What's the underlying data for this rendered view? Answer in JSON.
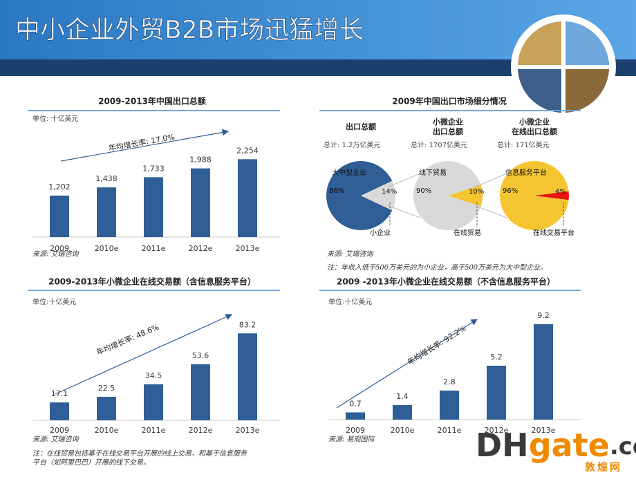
{
  "slide_title": "中小企业外贸B2B市场迅猛增长",
  "logo": {
    "dh": "DH",
    "gate": "gate",
    "com": ".com",
    "cn": "敦煌网"
  },
  "chart_data": [
    {
      "type": "bar",
      "title": "2009-2013年中国出口总额",
      "unit": "单位: 十亿美元",
      "categories": [
        "2009",
        "2010e",
        "2011e",
        "2012e",
        "2013e"
      ],
      "values": [
        1202,
        1438,
        1733,
        1988,
        2254
      ],
      "value_labels": [
        "1,202",
        "1,438",
        "1,733",
        "1,988",
        "2,254"
      ],
      "color": "#2f5f96",
      "ylim": [
        0,
        2500
      ],
      "annotation": "年均增长率: 17.0%",
      "source": "来源: 艾瑞咨询"
    },
    {
      "type": "pie",
      "title": "2009年中国出口市场细分情况",
      "pies": [
        {
          "name": "出口总额",
          "total": "总计: 1.2万亿美元",
          "categories": [
            "大中型企业",
            "小企业"
          ],
          "values": [
            86,
            14
          ],
          "value_labels": [
            "86%",
            "14%"
          ],
          "colors": [
            "#2f5f96",
            "#d9d9d9"
          ]
        },
        {
          "name": "小微企业\n出口总额",
          "total": "总计: 1707亿美元",
          "categories": [
            "线下贸易",
            "在线贸易"
          ],
          "values": [
            90,
            10
          ],
          "value_labels": [
            "90%",
            "10%"
          ],
          "colors": [
            "#d9d9d9",
            "#f5c531"
          ]
        },
        {
          "name": "小微企业\n在线出口总额",
          "total": "总计: 171亿美元",
          "categories": [
            "信息服务平台",
            "在线交易平台"
          ],
          "values": [
            96,
            4
          ],
          "value_labels": [
            "96%",
            "4%"
          ],
          "colors": [
            "#f5c531",
            "#e8140f"
          ]
        }
      ],
      "source": "来源: 艾瑞咨询",
      "note": "注：年收入低于500万美元的为小企业，高于500万美元为大中型企业。"
    },
    {
      "type": "bar",
      "title": "2009-2013年小微企业在线交易额（含信息服务平台）",
      "unit": "单位:十亿美元",
      "categories": [
        "2009",
        "2010e",
        "2011e",
        "2012e",
        "2013e"
      ],
      "values": [
        17.1,
        22.5,
        34.5,
        53.6,
        83.2
      ],
      "color": "#2f5f96",
      "ylim": [
        0,
        90
      ],
      "annotation": "年均增长率: 48.6%",
      "source": "来源: 艾瑞咨询",
      "note": "注：在线贸易包括基于在线交易平台开展的线上交易，和基于信息服务\n平台（如阿里巴巴）开展的线下交易。"
    },
    {
      "type": "bar",
      "title": "2009 -2013年小微企业在线交易额（不含信息服务平台）",
      "unit": "单位:十亿美元",
      "categories": [
        "2009",
        "2010e",
        "2011e",
        "2012e",
        "2013e"
      ],
      "values": [
        0.7,
        1.4,
        2.8,
        5.2,
        9.2
      ],
      "color": "#2f5f96",
      "ylim": [
        0,
        10
      ],
      "annotation": "年均增长率: 92.2%",
      "source": "来源: 易观国际"
    }
  ]
}
